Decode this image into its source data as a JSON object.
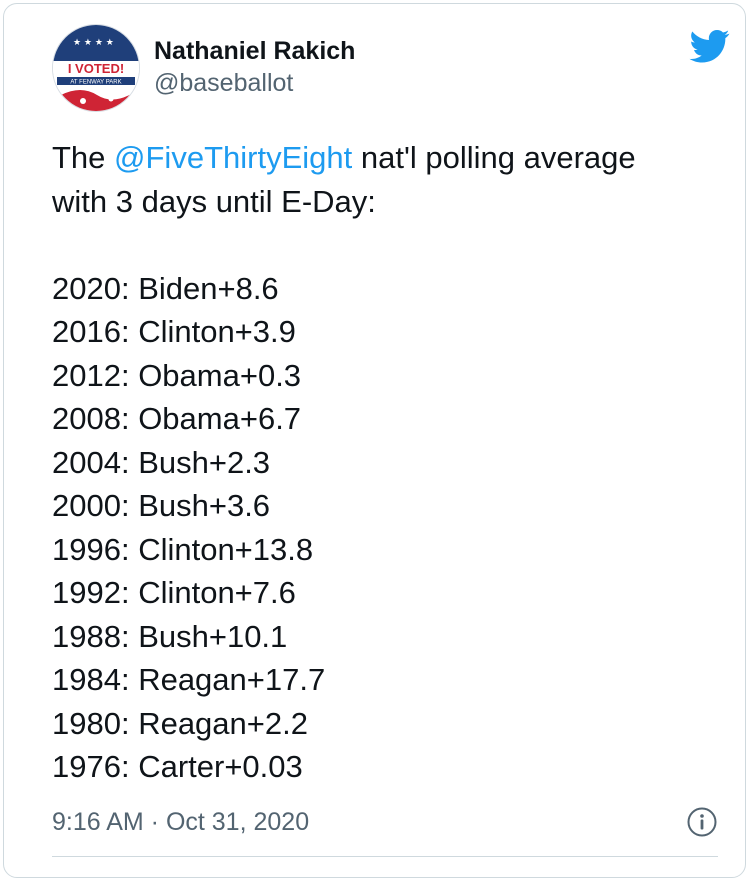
{
  "user": {
    "display_name": "Nathaniel Rakich",
    "handle": "@baseballot",
    "avatar": {
      "badge_text": "I VOTED!",
      "badge_subtext": "AT FENWAY PARK",
      "colors": {
        "navy": "#1f3f7a",
        "red": "#cf2435"
      }
    }
  },
  "tweet": {
    "intro_prefix": "The ",
    "mention": "@FiveThirtyEight",
    "intro_line1_suffix": " nat'l polling average",
    "intro_line2": "with 3 days until E-Day:",
    "results": [
      "2020: Biden+8.6",
      "2016: Clinton+3.9",
      "2012: Obama+0.3",
      "2008: Obama+6.7",
      "2004: Bush+2.3",
      "2000: Bush+3.6",
      "1996: Clinton+13.8",
      "1992: Clinton+7.6",
      "1988: Bush+10.1",
      "1984: Reagan+17.7",
      "1980: Reagan+2.2",
      "1976: Carter+0.03"
    ],
    "timestamp": "9:16 AM · Oct 31, 2020"
  },
  "icons": {
    "brand": "twitter-bird-icon",
    "info": "info-icon"
  },
  "colors": {
    "accent": "#1d9bf0",
    "text": "#0f1419",
    "secondary": "#536471",
    "border": "#cfd9de"
  }
}
